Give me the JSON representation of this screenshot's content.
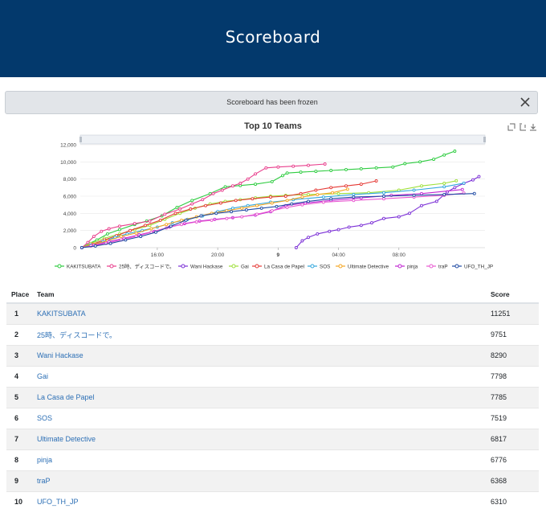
{
  "header": {
    "title": "Scoreboard"
  },
  "alert": {
    "message": "Scoreboard has been frozen",
    "close_icon": "close-icon"
  },
  "chart_toolbar": {
    "icons": [
      "reset-zoom-icon",
      "restore-icon",
      "download-icon"
    ]
  },
  "chart_data": {
    "type": "line",
    "title": "Top 10 Teams",
    "xlabel": "",
    "ylabel": "",
    "ylim": [
      0,
      12000
    ],
    "yticks": [
      "0",
      "2,000",
      "4,000",
      "6,000",
      "8,000",
      "10,000",
      "12,000"
    ],
    "xlim": [
      10.9,
      37.7
    ],
    "xticks": [
      {
        "x": 16,
        "label": "16:00"
      },
      {
        "x": 20,
        "label": "20:00"
      },
      {
        "x": 24,
        "label": "9"
      },
      {
        "x": 28,
        "label": "04:00"
      },
      {
        "x": 32,
        "label": "08:00"
      }
    ],
    "grid": true,
    "legend_position": "bottom",
    "series": [
      {
        "name": "KAKITSUBATA",
        "color": "#2ecc40",
        "points": [
          [
            11,
            0
          ],
          [
            11.5,
            500
          ],
          [
            12,
            900
          ],
          [
            12.7,
            1600
          ],
          [
            13.5,
            2100
          ],
          [
            14.5,
            2700
          ],
          [
            15.3,
            3100
          ],
          [
            16.3,
            3700
          ],
          [
            17.3,
            4700
          ],
          [
            18.3,
            5500
          ],
          [
            19.5,
            6300
          ],
          [
            20.5,
            7100
          ],
          [
            21.5,
            7250
          ],
          [
            22.5,
            7400
          ],
          [
            23.6,
            7700
          ],
          [
            24.3,
            8400
          ],
          [
            24.6,
            8700
          ],
          [
            25.5,
            8800
          ],
          [
            26.5,
            8900
          ],
          [
            27.5,
            9000
          ],
          [
            28.5,
            9100
          ],
          [
            29.5,
            9200
          ],
          [
            30.5,
            9300
          ],
          [
            31.6,
            9400
          ],
          [
            32.4,
            9800
          ],
          [
            33.4,
            10000
          ],
          [
            34.3,
            10300
          ],
          [
            35,
            10800
          ],
          [
            35.7,
            11251
          ]
        ]
      },
      {
        "name": "25時、ディスコードで。",
        "color": "#e83e8c",
        "points": [
          [
            11,
            0
          ],
          [
            11.4,
            600
          ],
          [
            11.8,
            1300
          ],
          [
            12.3,
            1900
          ],
          [
            12.8,
            2200
          ],
          [
            13.5,
            2500
          ],
          [
            14.5,
            2800
          ],
          [
            15.5,
            3100
          ],
          [
            16.5,
            3900
          ],
          [
            17.5,
            4500
          ],
          [
            18.3,
            5100
          ],
          [
            19,
            5600
          ],
          [
            19.7,
            6300
          ],
          [
            20.3,
            6700
          ],
          [
            21,
            7200
          ],
          [
            21.5,
            7500
          ],
          [
            22,
            8000
          ],
          [
            22.5,
            8600
          ],
          [
            23.2,
            9300
          ],
          [
            24,
            9400
          ],
          [
            25,
            9500
          ],
          [
            26,
            9600
          ],
          [
            27.1,
            9751
          ]
        ]
      },
      {
        "name": "Wani Hackase",
        "color": "#7b2fd6",
        "points": [
          [
            25.2,
            0
          ],
          [
            25.6,
            800
          ],
          [
            26,
            1200
          ],
          [
            26.6,
            1600
          ],
          [
            27.4,
            1900
          ],
          [
            28,
            2100
          ],
          [
            28.7,
            2400
          ],
          [
            29.5,
            2600
          ],
          [
            30.2,
            2900
          ],
          [
            31,
            3400
          ],
          [
            32,
            3600
          ],
          [
            32.7,
            4000
          ],
          [
            33.5,
            4900
          ],
          [
            34.5,
            5400
          ],
          [
            35.2,
            6500
          ],
          [
            35.7,
            7000
          ],
          [
            36.3,
            7500
          ],
          [
            36.9,
            7900
          ],
          [
            37.3,
            8290
          ]
        ]
      },
      {
        "name": "Gai",
        "color": "#9ee03a",
        "points": [
          [
            11,
            0
          ],
          [
            11.6,
            500
          ],
          [
            12.5,
            1100
          ],
          [
            13.5,
            1600
          ],
          [
            14.5,
            2100
          ],
          [
            15.5,
            2600
          ],
          [
            16.5,
            3300
          ],
          [
            17.5,
            4000
          ],
          [
            18.5,
            4600
          ],
          [
            19.5,
            5100
          ],
          [
            20.5,
            5400
          ],
          [
            21.5,
            5600
          ],
          [
            22.5,
            5800
          ],
          [
            23.5,
            6000
          ],
          [
            24.5,
            6100
          ],
          [
            26,
            6200
          ],
          [
            28,
            6300
          ],
          [
            30,
            6400
          ],
          [
            32,
            6700
          ],
          [
            33.5,
            7200
          ],
          [
            35,
            7500
          ],
          [
            35.8,
            7798
          ]
        ]
      },
      {
        "name": "La Casa de Papel",
        "color": "#e53935",
        "points": [
          [
            11,
            0
          ],
          [
            11.7,
            400
          ],
          [
            12.5,
            900
          ],
          [
            13.3,
            1400
          ],
          [
            14.2,
            2000
          ],
          [
            15.2,
            2600
          ],
          [
            16.2,
            3200
          ],
          [
            17.2,
            4000
          ],
          [
            18.2,
            4500
          ],
          [
            19.2,
            4900
          ],
          [
            20.2,
            5200
          ],
          [
            21.2,
            5500
          ],
          [
            22.3,
            5700
          ],
          [
            23.5,
            5900
          ],
          [
            24.5,
            6000
          ],
          [
            25.5,
            6300
          ],
          [
            26.5,
            6700
          ],
          [
            27.5,
            7000
          ],
          [
            28.5,
            7200
          ],
          [
            29.5,
            7400
          ],
          [
            30.5,
            7785
          ]
        ]
      },
      {
        "name": "SOS",
        "color": "#33a7dd",
        "points": [
          [
            11,
            0
          ],
          [
            11.6,
            300
          ],
          [
            12.4,
            700
          ],
          [
            13.2,
            1200
          ],
          [
            14,
            1600
          ],
          [
            15,
            2000
          ],
          [
            16,
            2400
          ],
          [
            17,
            2900
          ],
          [
            18,
            3300
          ],
          [
            19,
            3700
          ],
          [
            20,
            4200
          ],
          [
            21,
            4600
          ],
          [
            22,
            4900
          ],
          [
            23.5,
            5300
          ],
          [
            25,
            5600
          ],
          [
            27,
            5900
          ],
          [
            29,
            6200
          ],
          [
            31,
            6400
          ],
          [
            33,
            6700
          ],
          [
            35,
            7100
          ],
          [
            36.3,
            7519
          ]
        ]
      },
      {
        "name": "Ultimate Detective",
        "color": "#f5a623",
        "points": [
          [
            11,
            0
          ],
          [
            11.8,
            400
          ],
          [
            12.7,
            800
          ],
          [
            13.6,
            1300
          ],
          [
            14.6,
            1700
          ],
          [
            15.6,
            2200
          ],
          [
            16.6,
            2700
          ],
          [
            17.6,
            3200
          ],
          [
            18.6,
            3600
          ],
          [
            19.6,
            4000
          ],
          [
            20.6,
            4300
          ],
          [
            21.6,
            4600
          ],
          [
            22.6,
            4900
          ],
          [
            23.6,
            5200
          ],
          [
            24.6,
            5500
          ],
          [
            25.6,
            5900
          ],
          [
            26.6,
            6200
          ],
          [
            27.6,
            6400
          ],
          [
            28.6,
            6817
          ]
        ]
      },
      {
        "name": "pinja",
        "color": "#c026d3",
        "points": [
          [
            11,
            0
          ],
          [
            11.8,
            300
          ],
          [
            12.8,
            700
          ],
          [
            13.8,
            1100
          ],
          [
            14.8,
            1500
          ],
          [
            15.8,
            1900
          ],
          [
            16.8,
            2400
          ],
          [
            17.8,
            2800
          ],
          [
            18.8,
            3100
          ],
          [
            19.8,
            3300
          ],
          [
            21,
            3500
          ],
          [
            22.5,
            3800
          ],
          [
            23.5,
            4200
          ],
          [
            24.5,
            4900
          ],
          [
            25.8,
            5200
          ],
          [
            27.5,
            5500
          ],
          [
            29.5,
            5800
          ],
          [
            31.5,
            6100
          ],
          [
            33.5,
            6300
          ],
          [
            36.2,
            6776
          ]
        ]
      },
      {
        "name": "traP",
        "color": "#e95ad1",
        "points": [
          [
            11,
            0
          ],
          [
            11.6,
            200
          ],
          [
            12.6,
            500
          ],
          [
            13.6,
            900
          ],
          [
            14.6,
            1300
          ],
          [
            15.6,
            1800
          ],
          [
            16.6,
            2300
          ],
          [
            17.6,
            2700
          ],
          [
            18.6,
            3000
          ],
          [
            19.6,
            3200
          ],
          [
            20.6,
            3400
          ],
          [
            21.6,
            3600
          ],
          [
            22.6,
            3900
          ],
          [
            23.6,
            4300
          ],
          [
            24.6,
            4700
          ],
          [
            25.6,
            5000
          ],
          [
            27,
            5300
          ],
          [
            29,
            5500
          ],
          [
            31,
            5700
          ],
          [
            33,
            5900
          ],
          [
            35,
            6100
          ],
          [
            36.3,
            6368
          ]
        ]
      },
      {
        "name": "UFO_TH_JP",
        "color": "#1f4aa3",
        "points": [
          [
            11,
            0
          ],
          [
            11.9,
            200
          ],
          [
            12.9,
            500
          ],
          [
            13.9,
            900
          ],
          [
            14.9,
            1300
          ],
          [
            15.9,
            1800
          ],
          [
            16.9,
            2500
          ],
          [
            17.9,
            3200
          ],
          [
            18.9,
            3700
          ],
          [
            19.9,
            4000
          ],
          [
            20.9,
            4200
          ],
          [
            21.9,
            4400
          ],
          [
            22.9,
            4600
          ],
          [
            23.9,
            4800
          ],
          [
            24.9,
            5100
          ],
          [
            26,
            5400
          ],
          [
            27.5,
            5700
          ],
          [
            29,
            5900
          ],
          [
            31,
            6000
          ],
          [
            33,
            6100
          ],
          [
            35,
            6200
          ],
          [
            37,
            6310
          ]
        ]
      }
    ]
  },
  "table": {
    "headers": {
      "place": "Place",
      "team": "Team",
      "score": "Score"
    },
    "rows": [
      {
        "place": "1",
        "team": "KAKITSUBATA",
        "score": "11251"
      },
      {
        "place": "2",
        "team": "25時、ディスコードで。",
        "score": "9751"
      },
      {
        "place": "3",
        "team": "Wani Hackase",
        "score": "8290"
      },
      {
        "place": "4",
        "team": "Gai",
        "score": "7798"
      },
      {
        "place": "5",
        "team": "La Casa de Papel",
        "score": "7785"
      },
      {
        "place": "6",
        "team": "SOS",
        "score": "7519"
      },
      {
        "place": "7",
        "team": "Ultimate Detective",
        "score": "6817"
      },
      {
        "place": "8",
        "team": "pinja",
        "score": "6776"
      },
      {
        "place": "9",
        "team": "traP",
        "score": "6368"
      },
      {
        "place": "10",
        "team": "UFO_TH_JP",
        "score": "6310"
      }
    ]
  }
}
